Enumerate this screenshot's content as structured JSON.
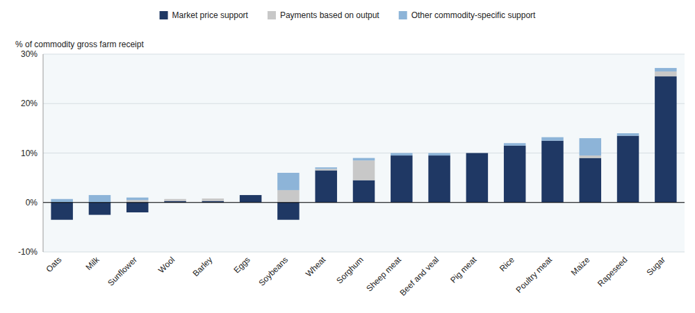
{
  "chart_data": {
    "type": "bar",
    "stacked": true,
    "y_label": "% of commodity gross farm receipt",
    "categories": [
      "Oats",
      "Milk",
      "Sunflower",
      "Wool",
      "Barley",
      "Eggs",
      "Soybeans",
      "Wheat",
      "Sorghum",
      "Sheep meat",
      "Beef and veal",
      "Pig meat",
      "Rice",
      "Poultry meat",
      "Maize",
      "Rapeseed",
      "Sugar"
    ],
    "series": [
      {
        "name": "Market price support",
        "color": "#1F3864",
        "values": [
          -3.5,
          -2.5,
          -2.0,
          0.3,
          0.3,
          1.5,
          -3.5,
          6.5,
          4.5,
          9.5,
          9.5,
          10.0,
          11.5,
          12.5,
          9.0,
          13.5,
          25.5
        ]
      },
      {
        "name": "Payments based on output",
        "color": "#C8C8C8",
        "values": [
          0.0,
          0.0,
          0.5,
          0.4,
          0.5,
          0.0,
          2.5,
          0.3,
          4.0,
          0.0,
          0.0,
          0.0,
          0.0,
          0.0,
          0.5,
          0.0,
          1.0
        ]
      },
      {
        "name": "Other commodity-specific support",
        "color": "#8DB4D8",
        "values": [
          0.7,
          1.5,
          0.5,
          0.0,
          0.0,
          0.0,
          3.5,
          0.3,
          0.5,
          0.5,
          0.5,
          0.0,
          0.5,
          0.7,
          3.5,
          0.5,
          0.7
        ]
      }
    ],
    "ylim": [
      -10,
      30
    ],
    "yticks": [
      {
        "value": -10,
        "label": "-10%"
      },
      {
        "value": 0,
        "label": "0%"
      },
      {
        "value": 10,
        "label": "10%"
      },
      {
        "value": 20,
        "label": "20%"
      },
      {
        "value": 30,
        "label": "30%"
      }
    ],
    "grid": true,
    "legend": "top"
  }
}
